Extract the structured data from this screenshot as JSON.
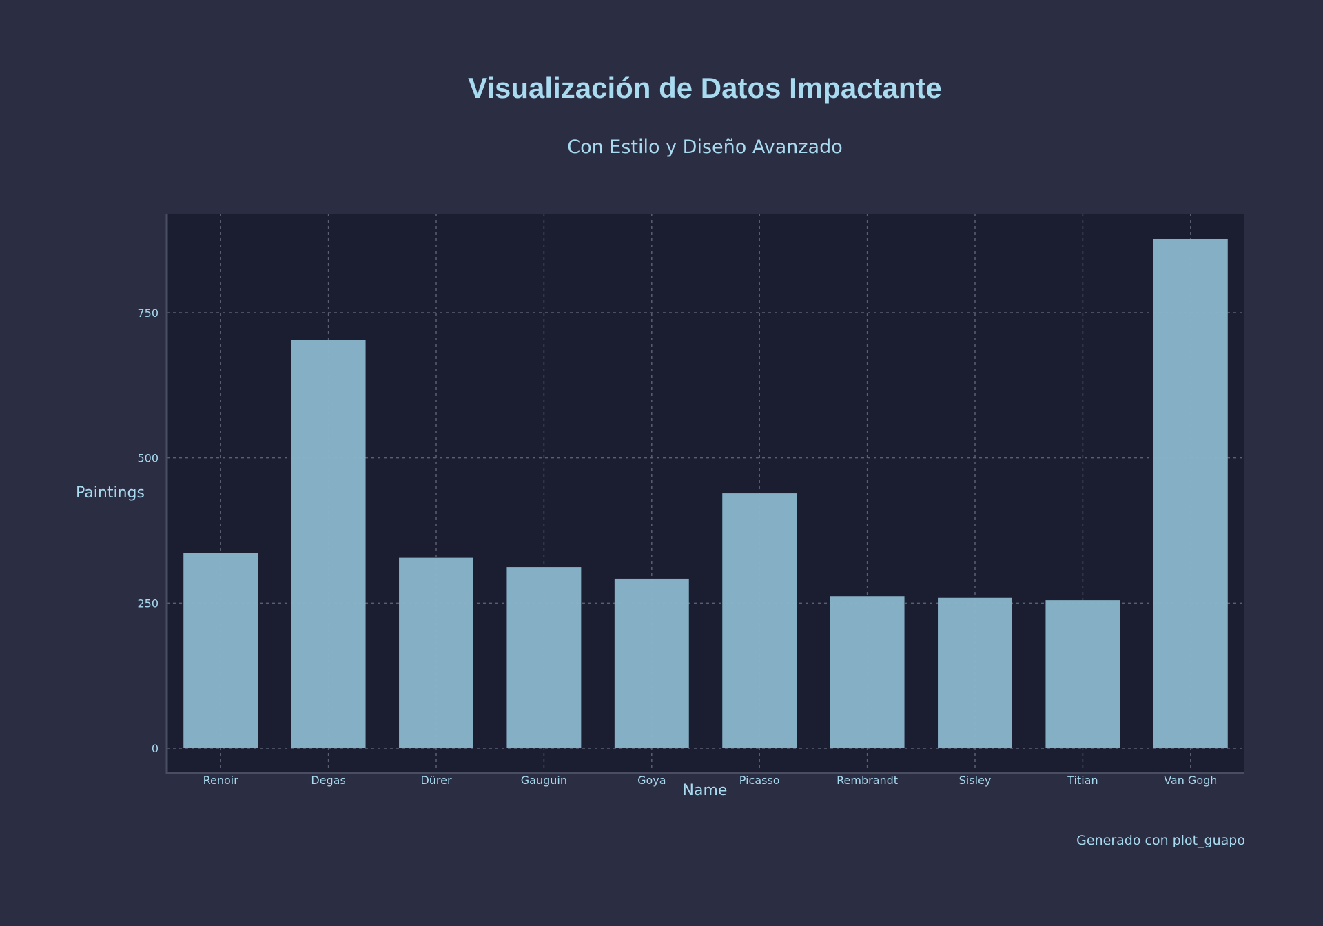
{
  "chart_data": {
    "type": "bar",
    "title": "Visualización de Datos Impactante",
    "subtitle": "Con Estilo y Diseño Avanzado",
    "xlabel": "Name",
    "ylabel": "Paintings",
    "categories": [
      "Renoir",
      "Degas",
      "Dürer",
      "Gauguin",
      "Goya",
      "Picasso",
      "Rembrandt",
      "Sisley",
      "Titian",
      "Van Gogh"
    ],
    "values": [
      337,
      703,
      328,
      312,
      292,
      439,
      262,
      259,
      255,
      877
    ],
    "ylim": [
      0,
      920
    ],
    "yticks": [
      0,
      250,
      500,
      750
    ],
    "grid": true,
    "legend": "none",
    "colors": {
      "background": "#2b2d42",
      "plot_background": "#1b1d31",
      "bar": "#89b4c9",
      "text": "#a8daf0",
      "grid": "#5a5f73",
      "axis": "#4a4e63"
    }
  },
  "footer": {
    "caption": "Generado con plot_guapo"
  }
}
